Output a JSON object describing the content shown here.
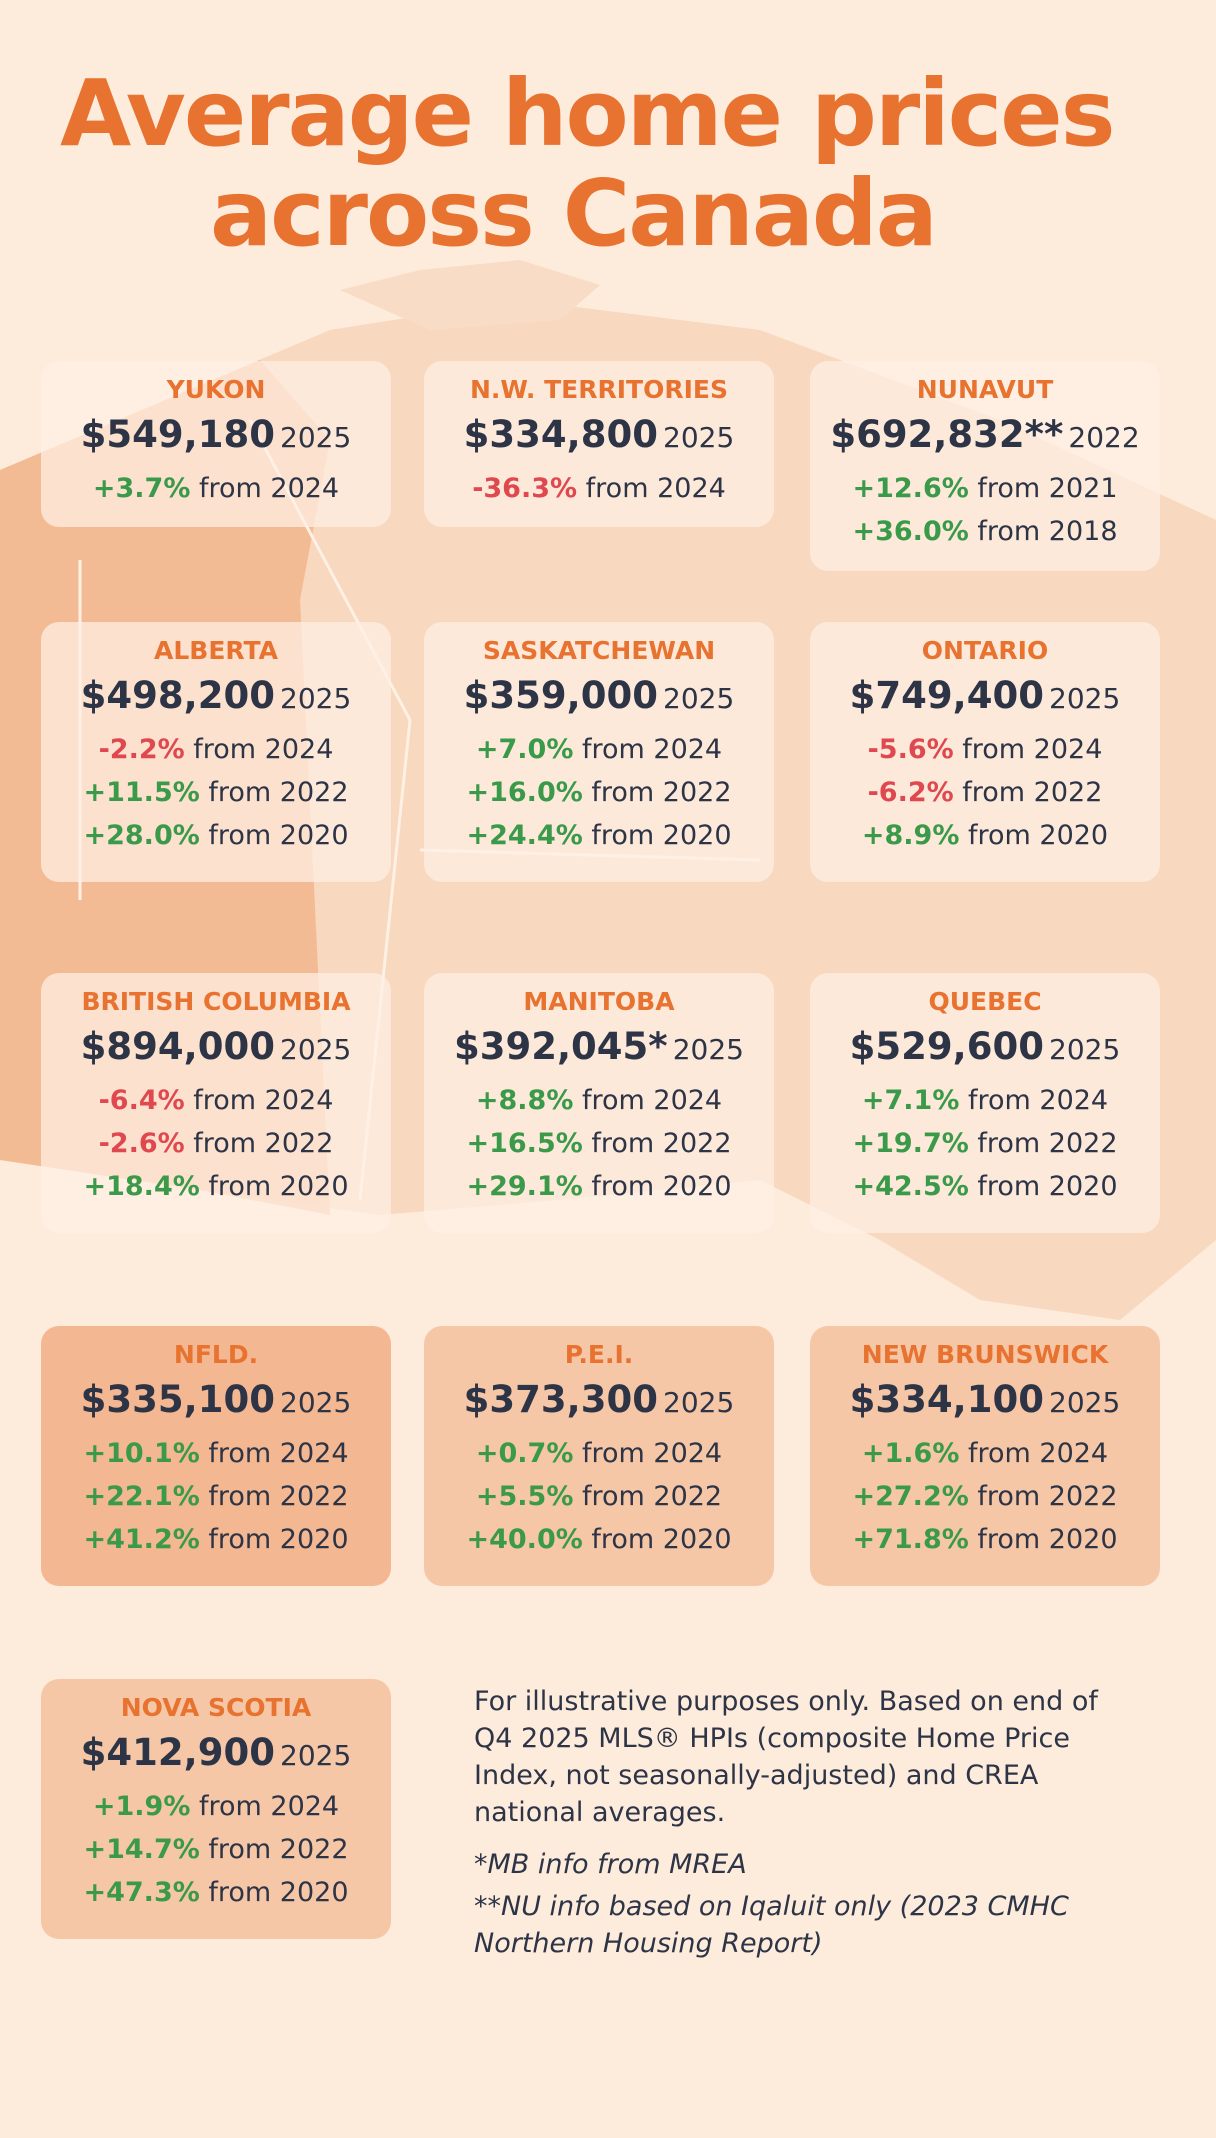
{
  "header": {
    "title_line1": "Average home prices",
    "title_line2": "across Canada"
  },
  "cards": [
    {
      "name": "YUKON",
      "price": "$549,180",
      "year": "2025",
      "changes": [
        {
          "pct": "+3.7%",
          "text": "from 2024"
        }
      ]
    },
    {
      "name": "N.W. TERRITORIES",
      "price": "$334,800",
      "year": "2025",
      "changes": [
        {
          "pct": "-36.3%",
          "text": "from 2024"
        }
      ]
    },
    {
      "name": "NUNAVUT",
      "price": "$692,832**",
      "year": "2022",
      "changes": [
        {
          "pct": "+12.6%",
          "text": "from 2021"
        },
        {
          "pct": "+36.0%",
          "text": "from 2018"
        }
      ]
    },
    {
      "name": "ALBERTA",
      "price": "$498,200",
      "year": "2025",
      "changes": [
        {
          "pct": "-2.2%",
          "text": "from 2024"
        },
        {
          "pct": "+11.5%",
          "text": "from 2022"
        },
        {
          "pct": "+28.0%",
          "text": "from 2020"
        }
      ]
    },
    {
      "name": "SASKATCHEWAN",
      "price": "$359,000",
      "year": "2025",
      "changes": [
        {
          "pct": "+7.0%",
          "text": "from 2024"
        },
        {
          "pct": "+16.0%",
          "text": "from 2022"
        },
        {
          "pct": "+24.4%",
          "text": "from 2020"
        }
      ]
    },
    {
      "name": "ONTARIO",
      "price": "$749,400",
      "year": "2025",
      "changes": [
        {
          "pct": "-5.6%",
          "text": "from 2024"
        },
        {
          "pct": "-6.2%",
          "text": "from 2022"
        },
        {
          "pct": "+8.9%",
          "text": "from 2020"
        }
      ]
    },
    {
      "name": "BRITISH COLUMBIA",
      "price": "$894,000",
      "year": "2025",
      "changes": [
        {
          "pct": "-6.4%",
          "text": "from 2024"
        },
        {
          "pct": "-2.6%",
          "text": "from 2022"
        },
        {
          "pct": "+18.4%",
          "text": "from 2020"
        }
      ]
    },
    {
      "name": "MANITOBA",
      "price": "$392,045*",
      "year": "2025",
      "changes": [
        {
          "pct": "+8.8%",
          "text": "from 2024"
        },
        {
          "pct": "+16.5%",
          "text": "from 2022"
        },
        {
          "pct": "+29.1%",
          "text": "from 2020"
        }
      ]
    },
    {
      "name": "QUEBEC",
      "price": "$529,600",
      "year": "2025",
      "changes": [
        {
          "pct": "+7.1%",
          "text": "from 2024"
        },
        {
          "pct": "+19.7%",
          "text": "from 2022"
        },
        {
          "pct": "+42.5%",
          "text": "from 2020"
        }
      ]
    },
    {
      "name": "NFLD.",
      "price": "$335,100",
      "year": "2025",
      "changes": [
        {
          "pct": "+10.1%",
          "text": "from 2024"
        },
        {
          "pct": "+22.1%",
          "text": "from 2022"
        },
        {
          "pct": "+41.2%",
          "text": "from 2020"
        }
      ]
    },
    {
      "name": "P.E.I.",
      "price": "$373,300",
      "year": "2025",
      "changes": [
        {
          "pct": "+0.7%",
          "text": "from 2024"
        },
        {
          "pct": "+5.5%",
          "text": "from 2022"
        },
        {
          "pct": "+40.0%",
          "text": "from 2020"
        }
      ]
    },
    {
      "name": "NEW BRUNSWICK",
      "price": "$334,100",
      "year": "2025",
      "changes": [
        {
          "pct": "+1.6%",
          "text": "from 2024"
        },
        {
          "pct": "+27.2%",
          "text": "from 2022"
        },
        {
          "pct": "+71.8%",
          "text": "from 2020"
        }
      ]
    },
    {
      "name": "NOVA SCOTIA",
      "price": "$412,900",
      "year": "2025",
      "changes": [
        {
          "pct": "+1.9%",
          "text": "from 2024"
        },
        {
          "pct": "+14.7%",
          "text": "from 2022"
        },
        {
          "pct": "+47.3%",
          "text": "from 2020"
        }
      ]
    }
  ],
  "notes": {
    "main": "For illustrative purposes only. Based on end of Q4 2025 MLS® HPIs (composite Home Price Index, not seasonally-adjusted) and CREA national averages.",
    "mb": "*MB info from MREA",
    "nu": "**NU info based on Iqaluit only (2023 CMHC Northern Housing Report)"
  }
}
